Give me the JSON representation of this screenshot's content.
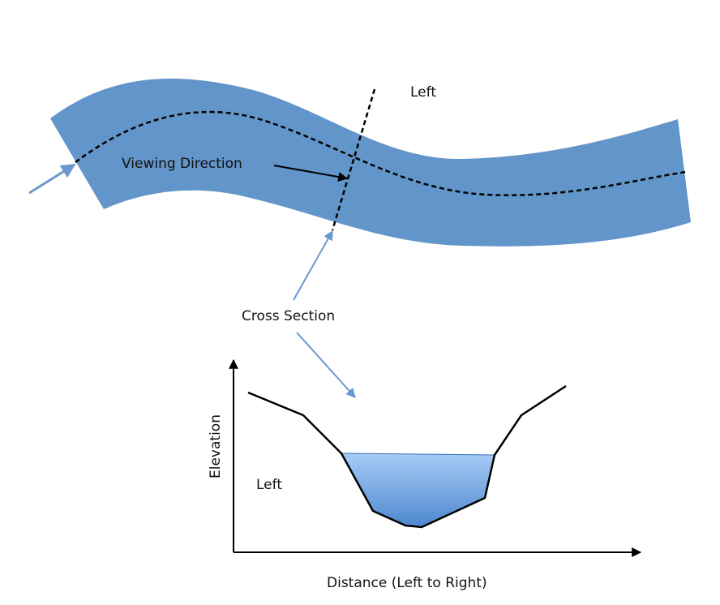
{
  "labels": {
    "left_top": "Left",
    "viewing_direction": "Viewing Direction",
    "cross_section": "Cross Section",
    "left_bottom": "Left",
    "x_axis": "Distance (Left to Right)",
    "y_axis": "Elevation"
  },
  "colors": {
    "river": "#6295C9",
    "pointer_arrow": "#6A98CE",
    "water_top": "#A8CCF6",
    "water_bottom": "#4D87CF",
    "line": "#000000"
  }
}
